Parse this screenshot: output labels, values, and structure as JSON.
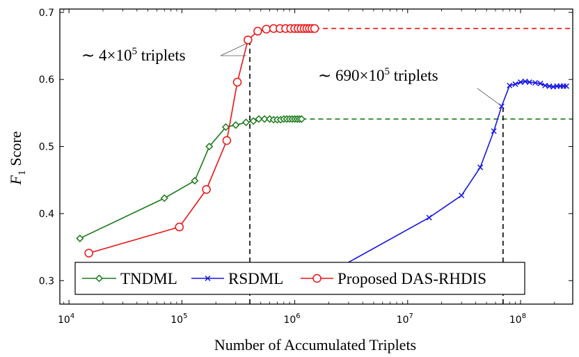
{
  "chart_data": {
    "type": "line",
    "xscale": "log",
    "xlim": [
      8300,
      290000000
    ],
    "ylim": [
      0.265,
      0.705
    ],
    "x_ticks": [
      {
        "value": 10000,
        "base": "10",
        "exp": "4"
      },
      {
        "value": 100000,
        "base": "10",
        "exp": "5"
      },
      {
        "value": 1000000,
        "base": "10",
        "exp": "6"
      },
      {
        "value": 10000000,
        "base": "10",
        "exp": "7"
      },
      {
        "value": 100000000,
        "base": "10",
        "exp": "8"
      }
    ],
    "y_ticks": [
      "0.3",
      "0.4",
      "0.5",
      "0.6",
      "0.7"
    ],
    "xlabel": "Number of Accumulated Triplets",
    "ylabel": {
      "main": "F",
      "sub": "1",
      "rest": "Score"
    },
    "legend_position": "bottom-center",
    "series": [
      {
        "name": "TNDML",
        "color": "#1a7a1a",
        "marker": "diamond",
        "points": [
          [
            12500,
            0.363
          ],
          [
            70000,
            0.423
          ],
          [
            130000,
            0.449
          ],
          [
            175000,
            0.5
          ],
          [
            245000,
            0.529
          ],
          [
            300000,
            0.532
          ],
          [
            370000,
            0.536
          ],
          [
            430000,
            0.538
          ],
          [
            480000,
            0.541
          ],
          [
            540000,
            0.541
          ],
          [
            600000,
            0.541
          ],
          [
            650000,
            0.54
          ],
          [
            700000,
            0.54
          ],
          [
            750000,
            0.54
          ],
          [
            800000,
            0.541
          ],
          [
            850000,
            0.541
          ],
          [
            900000,
            0.541
          ],
          [
            950000,
            0.541
          ],
          [
            1000000,
            0.541
          ],
          [
            1050000,
            0.541
          ],
          [
            1100000,
            0.541
          ],
          [
            1150000,
            0.541
          ]
        ]
      },
      {
        "name": "RSDML",
        "color": "#1515e6",
        "marker": "x",
        "points": [
          [
            2000000,
            0.311
          ],
          [
            15500000,
            0.394
          ],
          [
            30000000,
            0.427
          ],
          [
            44000000,
            0.469
          ],
          [
            58000000,
            0.523
          ],
          [
            68000000,
            0.56
          ],
          [
            80000000,
            0.591
          ],
          [
            90000000,
            0.593
          ],
          [
            100000000,
            0.596
          ],
          [
            110000000,
            0.597
          ],
          [
            120000000,
            0.596
          ],
          [
            135000000,
            0.595
          ],
          [
            150000000,
            0.594
          ],
          [
            165000000,
            0.591
          ],
          [
            180000000,
            0.59
          ],
          [
            195000000,
            0.589
          ],
          [
            210000000,
            0.59
          ],
          [
            225000000,
            0.59
          ],
          [
            240000000,
            0.59
          ],
          [
            255000000,
            0.59
          ]
        ]
      },
      {
        "name": "Proposed DAS-RHDIS",
        "color": "#ee1111",
        "marker": "circle",
        "points": [
          [
            15000,
            0.341
          ],
          [
            95000,
            0.38
          ],
          [
            165000,
            0.436
          ],
          [
            250000,
            0.509
          ],
          [
            310000,
            0.596
          ],
          [
            385000,
            0.659
          ],
          [
            470000,
            0.672
          ],
          [
            560000,
            0.675
          ],
          [
            650000,
            0.676
          ],
          [
            740000,
            0.676
          ],
          [
            830000,
            0.676
          ],
          [
            920000,
            0.676
          ],
          [
            1000000,
            0.676
          ],
          [
            1070000,
            0.676
          ],
          [
            1140000,
            0.676
          ],
          [
            1210000,
            0.676
          ],
          [
            1280000,
            0.676
          ],
          [
            1350000,
            0.676
          ],
          [
            1420000,
            0.676
          ],
          [
            1500000,
            0.676
          ]
        ]
      }
    ],
    "reference_lines": [
      {
        "type": "horizontal",
        "y": 0.676,
        "x_start": 1500000,
        "x_end": 290000000,
        "color": "#ee1111",
        "style": "dashed"
      },
      {
        "type": "horizontal",
        "y": 0.541,
        "x_start": 1150000,
        "x_end": 290000000,
        "color": "#1a7a1a",
        "style": "dashed"
      },
      {
        "type": "vertical",
        "x": 400000,
        "y_start": 0.265,
        "y_end": 0.659,
        "color": "#000000",
        "style": "dashed"
      },
      {
        "type": "vertical",
        "x": 70000000,
        "y_start": 0.265,
        "y_end": 0.562,
        "color": "#000000",
        "style": "dashed"
      }
    ],
    "annotations": [
      {
        "text_prefix": "∼ 4×10",
        "sup": "5",
        "text_suffix": " triplets",
        "point": [
          390000,
          0.654
        ]
      },
      {
        "text_prefix": "∼ 690×10",
        "sup": "5",
        "text_suffix": " triplets",
        "point": [
          69000000,
          0.561
        ]
      }
    ]
  }
}
